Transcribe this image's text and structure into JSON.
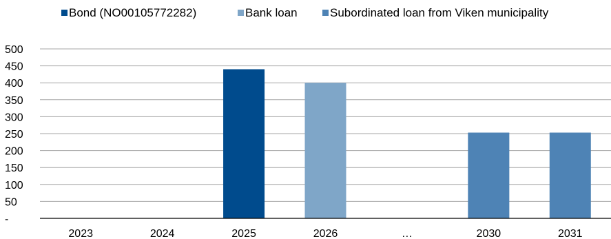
{
  "chart_data": {
    "type": "bar",
    "categories": [
      "2023",
      "2024",
      "2025",
      "2026",
      "…",
      "2030",
      "2031"
    ],
    "series": [
      {
        "name": "Bond (NO00105772282)",
        "color": "#004b8d",
        "values": [
          0,
          0,
          440,
          0,
          0,
          0,
          0
        ]
      },
      {
        "name": "Bank loan",
        "color": "#7fa6c8",
        "values": [
          0,
          0,
          0,
          400,
          0,
          0,
          0
        ]
      },
      {
        "name": "Subordinated loan from Viken municipality",
        "color": "#4e83b5",
        "values": [
          0,
          0,
          0,
          0,
          0,
          253,
          253
        ]
      }
    ],
    "y_ticks": [
      "-",
      "50",
      "100",
      "150",
      "200",
      "250",
      "300",
      "350",
      "400",
      "450",
      "500"
    ],
    "ylim": [
      0,
      500
    ],
    "grid": true,
    "legend_position": "top"
  }
}
